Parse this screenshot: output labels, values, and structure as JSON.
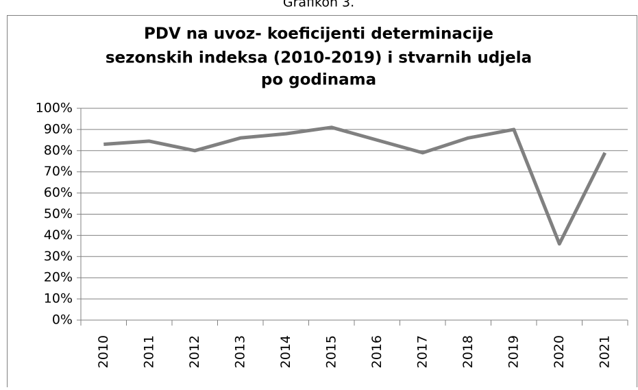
{
  "caption": "Grafikon 3.",
  "chart_data": {
    "type": "line",
    "title": [
      "PDV na uvoz- koeficijenti determinacije",
      "sezonskih indeksa (2010-2019)  i stvarnih udjela",
      "po godinama"
    ],
    "categories": [
      "2010",
      "2011",
      "2012",
      "2013",
      "2014",
      "2015",
      "2016",
      "2017",
      "2018",
      "2019",
      "2020",
      "2021"
    ],
    "values": [
      83,
      84.5,
      80,
      86,
      88,
      91,
      85,
      79,
      86,
      90,
      36,
      79
    ],
    "color": "#808080",
    "ylim": [
      0,
      100
    ],
    "yticks": [
      {
        "value": 0,
        "label": "0%"
      },
      {
        "value": 10,
        "label": "10%"
      },
      {
        "value": 20,
        "label": "20%"
      },
      {
        "value": 30,
        "label": "30%"
      },
      {
        "value": 40,
        "label": "40%"
      },
      {
        "value": 50,
        "label": "50%"
      },
      {
        "value": 60,
        "label": "60%"
      },
      {
        "value": 70,
        "label": "70%"
      },
      {
        "value": 80,
        "label": "80%"
      },
      {
        "value": 90,
        "label": "90%"
      },
      {
        "value": 100,
        "label": "100%"
      }
    ],
    "grid": true
  }
}
